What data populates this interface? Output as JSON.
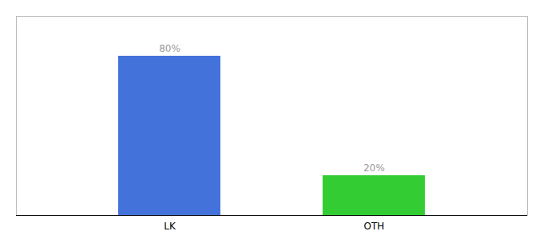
{
  "chart_data": {
    "type": "bar",
    "categories": [
      "LK",
      "OTH"
    ],
    "values": [
      80,
      20
    ],
    "value_labels": [
      "80%",
      "20%"
    ],
    "colors": [
      "#4472db",
      "#33cc33"
    ],
    "data_labels": true,
    "ylim": [
      0,
      100
    ],
    "grid": false,
    "tick_labels": "x"
  }
}
